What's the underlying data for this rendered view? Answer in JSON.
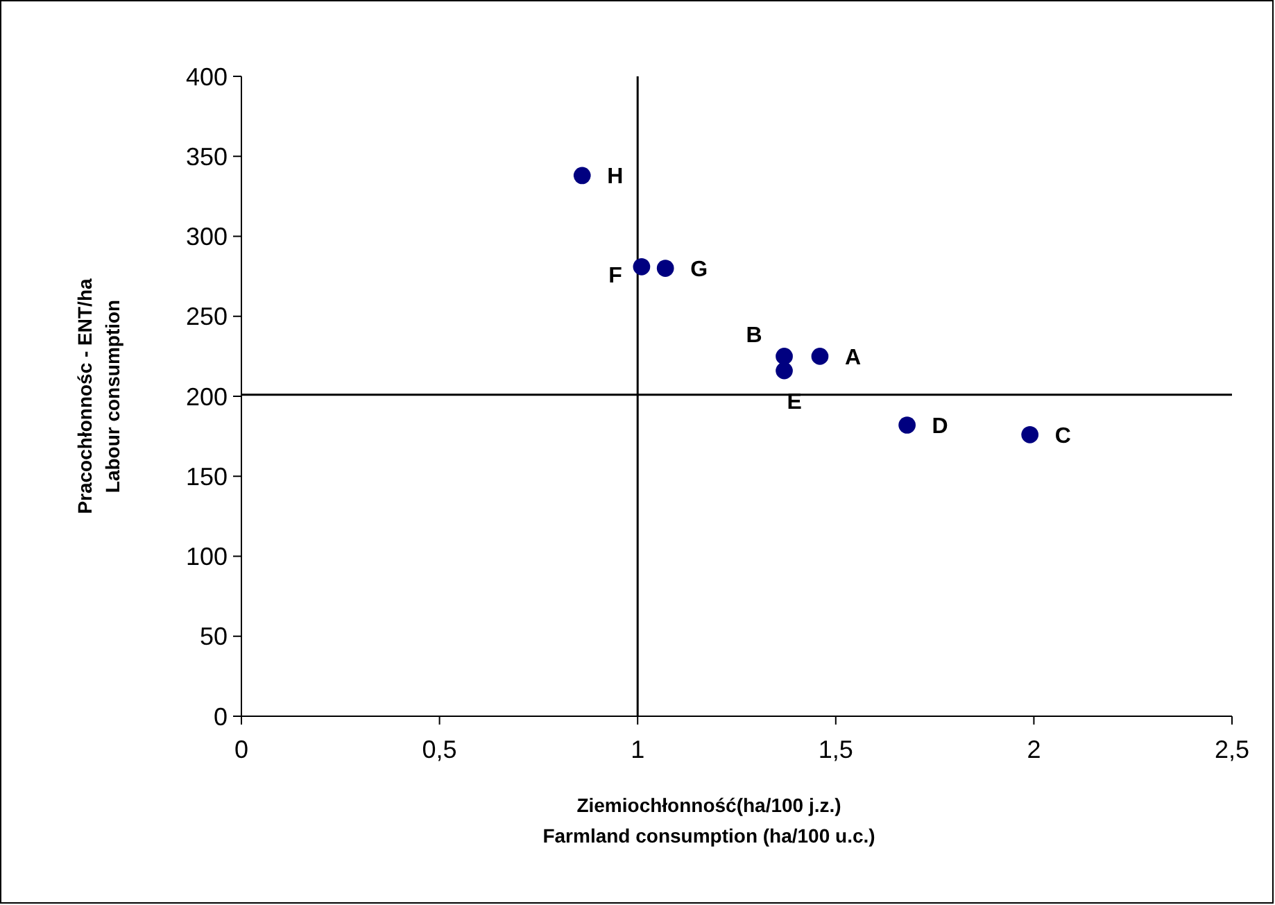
{
  "chart_data": {
    "type": "scatter",
    "xlabel": "Ziemiochłonność(ha/100 j.z.)\nFarmland consumption (ha/100 u.c.)",
    "ylabel": "Pracochłonnośc - ENT/ha\nLabour consumption",
    "x": [
      0.86,
      1.01,
      1.07,
      1.37,
      1.46,
      1.37,
      1.68,
      1.99
    ],
    "series": [
      {
        "color": "#000080",
        "values": [
          338,
          281,
          280,
          225,
          225,
          216,
          182,
          176
        ]
      }
    ],
    "marker": "circle",
    "grid": false,
    "xlim": [
      0,
      2.5
    ],
    "xticks": [
      0,
      {
        "value": 0.5,
        "label": "0,5"
      },
      1,
      {
        "value": 1.5,
        "label": "1,5"
      },
      2,
      {
        "value": 2.5,
        "label": "2,5"
      }
    ],
    "ylim": [
      0,
      400
    ],
    "yticks": [
      0,
      50,
      100,
      150,
      200,
      250,
      300,
      350,
      400
    ],
    "ref_lines": [
      {
        "axis": "x",
        "value": 1,
        "color": "#000000"
      },
      {
        "axis": "y",
        "value": 201,
        "color": "#000000"
      }
    ],
    "annotations": [
      {
        "text": "H",
        "x": 0.86,
        "y": 338
      },
      {
        "text": "F",
        "x": 1.01,
        "y": 281
      },
      {
        "text": "G",
        "x": 1.07,
        "y": 280
      },
      {
        "text": "B",
        "x": 1.37,
        "y": 225
      },
      {
        "text": "A",
        "x": 1.46,
        "y": 225
      },
      {
        "text": "E",
        "x": 1.37,
        "y": 216
      },
      {
        "text": "D",
        "x": 1.68,
        "y": 182
      },
      {
        "text": "C",
        "x": 1.99,
        "y": 176
      }
    ]
  }
}
